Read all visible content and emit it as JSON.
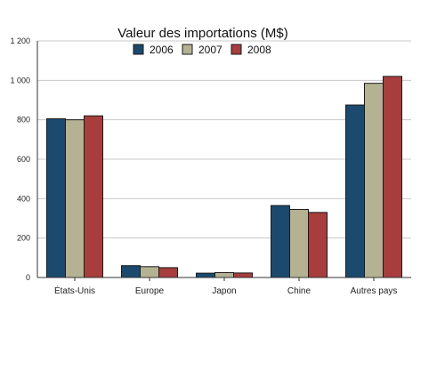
{
  "chart_data": {
    "type": "bar",
    "title": "Valeur des importations (M$)",
    "xlabel": "",
    "ylabel": "",
    "categories": [
      "États-Unis",
      "Europe",
      "Japon",
      "Chine",
      "Autres pays"
    ],
    "series": [
      {
        "name": "2006",
        "color": "#1b4a6e",
        "values": [
          805,
          60,
          22,
          365,
          875
        ]
      },
      {
        "name": "2007",
        "color": "#b4b293",
        "values": [
          800,
          55,
          25,
          345,
          985
        ]
      },
      {
        "name": "2008",
        "color": "#a83d3d",
        "values": [
          820,
          50,
          23,
          330,
          1020
        ]
      }
    ],
    "ylim": [
      0,
      1200
    ],
    "yticks": [
      0,
      200,
      400,
      600,
      800,
      1000,
      1200
    ],
    "ytick_labels": [
      "0",
      "200",
      "400",
      "600",
      "800",
      "1 000",
      "1 200"
    ],
    "grid": true,
    "legend_position": "top"
  }
}
